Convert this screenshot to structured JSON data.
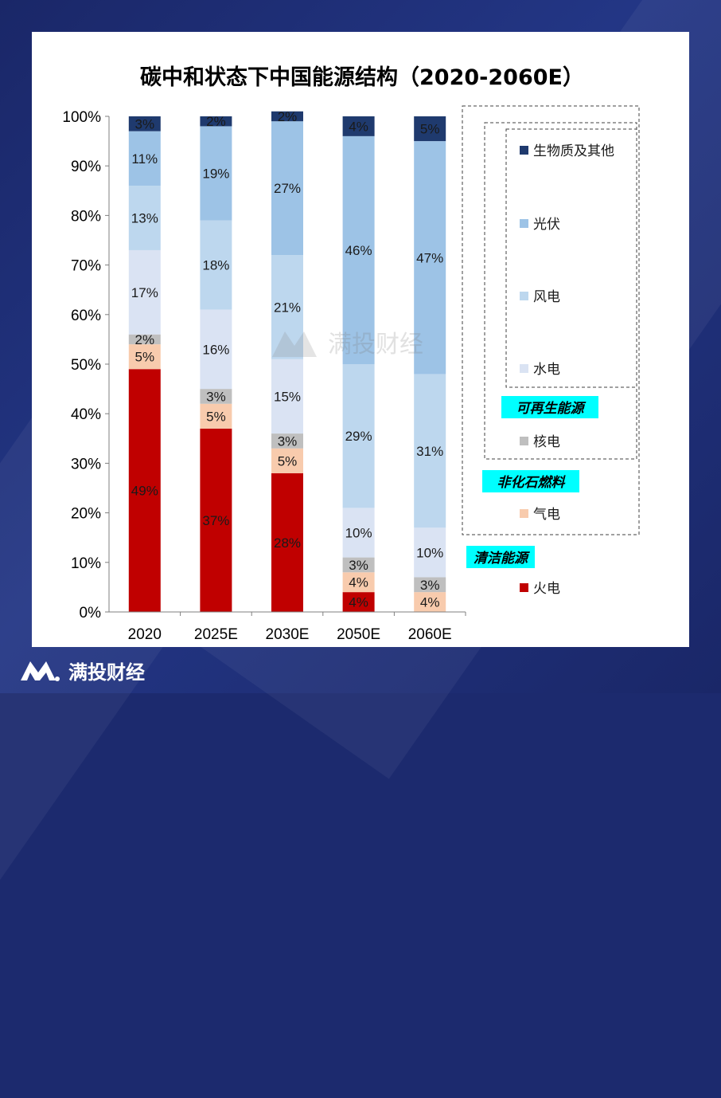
{
  "watermark": "满投财经",
  "footer_brand": "满投财经",
  "chart_data": {
    "type": "bar",
    "stacked": true,
    "title": "碳中和状态下中国能源结构（2020-2060E）",
    "categories": [
      "2020",
      "2025E",
      "2030E",
      "2050E",
      "2060E"
    ],
    "ylim": [
      0,
      100
    ],
    "yticks": [
      "0%",
      "10%",
      "20%",
      "30%",
      "40%",
      "50%",
      "60%",
      "70%",
      "80%",
      "90%",
      "100%"
    ],
    "series": [
      {
        "name": "火电",
        "color": "#c00000",
        "values": [
          49,
          37,
          28,
          4,
          0
        ]
      },
      {
        "name": "气电",
        "color": "#f8cbad",
        "values": [
          5,
          5,
          5,
          4,
          4
        ]
      },
      {
        "name": "核电",
        "color": "#bfbfbf",
        "values": [
          2,
          3,
          3,
          3,
          3
        ]
      },
      {
        "name": "水电",
        "color": "#dae3f3",
        "values": [
          17,
          16,
          15,
          10,
          10
        ]
      },
      {
        "name": "风电",
        "color": "#bdd7ee",
        "values": [
          13,
          18,
          21,
          29,
          31
        ]
      },
      {
        "name": "光伏",
        "color": "#9dc3e6",
        "values": [
          11,
          19,
          27,
          46,
          47
        ]
      },
      {
        "name": "生物质及其他",
        "color": "#1f3a6e",
        "values": [
          3,
          2,
          2,
          4,
          5
        ]
      }
    ],
    "legend": {
      "items": [
        "生物质及其他",
        "光伏",
        "风电",
        "水电",
        "核电",
        "气电",
        "火电"
      ],
      "groups": [
        "可再生能源",
        "非化石燃料",
        "清洁能源"
      ],
      "group_color": "#00ffff"
    }
  }
}
